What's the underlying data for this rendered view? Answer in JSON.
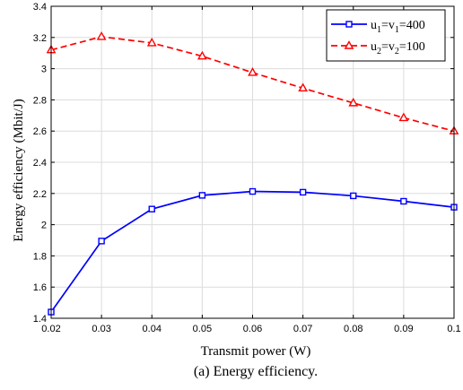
{
  "chart_data": {
    "type": "line",
    "caption": "(a) Energy efficiency.",
    "xlabel": "Transmit power (W)",
    "ylabel": "Energy efficiency (Mbit/J)",
    "xlim": [
      0.02,
      0.1
    ],
    "ylim": [
      1.4,
      3.4
    ],
    "xticks": [
      "0.02",
      "0.03",
      "0.04",
      "0.05",
      "0.06",
      "0.07",
      "0.08",
      "0.09",
      "0.1"
    ],
    "yticks": [
      "1.4",
      "1.6",
      "1.8",
      "2",
      "2.2",
      "2.4",
      "2.6",
      "2.8",
      "3",
      "3.2",
      "3.4"
    ],
    "grid": true,
    "legend_position": "top-right",
    "x": [
      0.02,
      0.03,
      0.04,
      0.05,
      0.06,
      0.07,
      0.08,
      0.09,
      0.1
    ],
    "series": [
      {
        "name": "u1=v1=400",
        "legend": {
          "a": "u",
          "a_sub": "1",
          "b": "=v",
          "b_sub": "1",
          "c": "=400"
        },
        "color": "#0000ff",
        "marker": "square",
        "linestyle": "solid",
        "values": [
          1.44,
          1.895,
          2.1,
          2.188,
          2.213,
          2.208,
          2.185,
          2.15,
          2.112
        ]
      },
      {
        "name": "u2=v2=100",
        "legend": {
          "a": "u",
          "a_sub": "2",
          "b": "=v",
          "b_sub": "2",
          "c": "=100"
        },
        "color": "#ff0000",
        "marker": "triangle",
        "linestyle": "dashed",
        "values": [
          3.12,
          3.205,
          3.165,
          3.08,
          2.975,
          2.875,
          2.78,
          2.685,
          2.6
        ]
      }
    ]
  }
}
